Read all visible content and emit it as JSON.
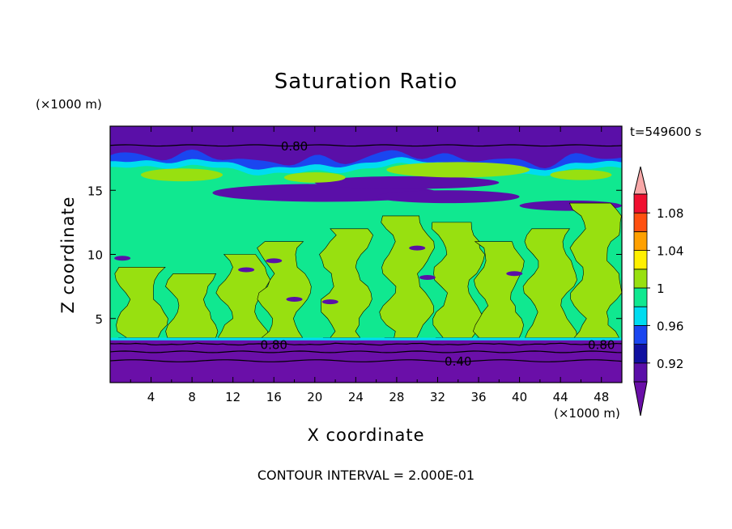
{
  "chart_data": {
    "type": "heatmap",
    "title": "Saturation Ratio",
    "xlabel": "X coordinate",
    "ylabel": "Z coordinate",
    "x_unit": "(×1000 m)",
    "y_unit": "(×1000 m)",
    "time_label": "t=549600 s",
    "contour_interval": "CONTOUR INTERVAL = 2.000E-01",
    "xlim": [
      0,
      50
    ],
    "ylim": [
      0,
      20
    ],
    "x_ticks": [
      "4",
      "8",
      "12",
      "16",
      "20",
      "24",
      "28",
      "32",
      "36",
      "40",
      "44",
      "48"
    ],
    "y_ticks": [
      "5",
      "10",
      "15"
    ],
    "contour_labels": [
      {
        "text": "0.80",
        "x": 18,
        "z": 18.5
      },
      {
        "text": "0.80",
        "x": 16,
        "z": 3.0
      },
      {
        "text": "0.80",
        "x": 48,
        "z": 3.0
      },
      {
        "text": "0.40",
        "x": 34,
        "z": 1.7
      }
    ],
    "colorbar": {
      "tick_labels": [
        "1.08",
        "1.04",
        "1",
        "0.96",
        "0.92"
      ],
      "tick_values": [
        1.08,
        1.04,
        1.0,
        0.96,
        0.92
      ],
      "levels": [
        {
          "min": 0.9,
          "max": 0.92,
          "color": "#5a0fa8"
        },
        {
          "min": 0.92,
          "max": 0.94,
          "color": "#1010a0"
        },
        {
          "min": 0.94,
          "max": 0.96,
          "color": "#1a46f0"
        },
        {
          "min": 0.96,
          "max": 0.98,
          "color": "#00dcf0"
        },
        {
          "min": 0.98,
          "max": 1.0,
          "color": "#10e890"
        },
        {
          "min": 1.0,
          "max": 1.02,
          "color": "#98e010"
        },
        {
          "min": 1.02,
          "max": 1.04,
          "color": "#fff000"
        },
        {
          "min": 1.04,
          "max": 1.06,
          "color": "#ffa000"
        },
        {
          "min": 1.06,
          "max": 1.08,
          "color": "#ff5010"
        },
        {
          "min": 1.08,
          "max": 1.1,
          "color": "#f01030"
        }
      ],
      "under_color": "#6a0fa8",
      "over_color": "#f8a8a8"
    }
  }
}
